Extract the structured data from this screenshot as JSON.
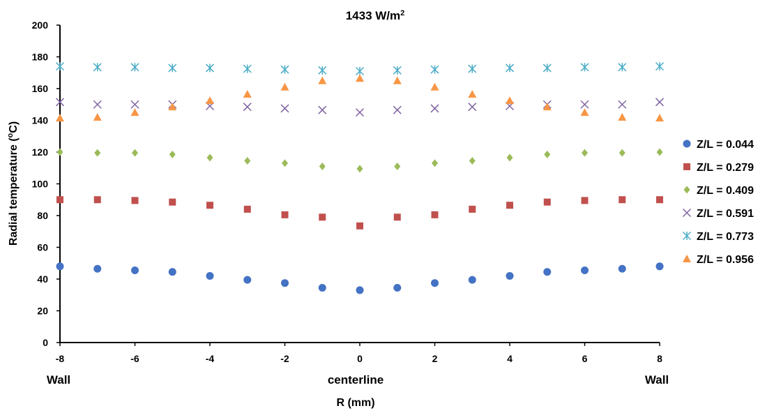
{
  "chart_data": {
    "type": "scatter",
    "title": "1433 W/m",
    "title_superscript": "2",
    "xlabel": "R (mm)",
    "ylabel": "Radial temperature (",
    "ylabel_superscript": "o",
    "ylabel_suffix": "C)",
    "xlim": [
      -8,
      8
    ],
    "ylim": [
      0,
      200
    ],
    "xticks": [
      -8,
      -6,
      -4,
      -2,
      0,
      2,
      4,
      6,
      8
    ],
    "yticks": [
      0,
      20,
      40,
      60,
      80,
      100,
      120,
      140,
      160,
      180,
      200
    ],
    "grid": false,
    "legend_position": "right",
    "below_axis_labels": {
      "left": "Wall",
      "center": "centerline",
      "right": "Wall"
    },
    "x": [
      -8,
      -7,
      -6,
      -5,
      -4,
      -3,
      -2,
      -1,
      0,
      1,
      2,
      3,
      4,
      5,
      6,
      7,
      8
    ],
    "series": [
      {
        "name": "Z/L = 0.044",
        "marker": "circle",
        "color": "#4472C4",
        "values": [
          48,
          46.5,
          45.5,
          44.5,
          42,
          39.5,
          37.5,
          34.5,
          33,
          34.5,
          37.5,
          39.5,
          42,
          44.5,
          45.5,
          46.5,
          48
        ]
      },
      {
        "name": "Z/L = 0.279",
        "marker": "square",
        "color": "#C0504D",
        "values": [
          90,
          90,
          89.5,
          88.5,
          86.5,
          84,
          80.5,
          79,
          73.5,
          79,
          80.5,
          84,
          86.5,
          88.5,
          89.5,
          90,
          90
        ]
      },
      {
        "name": "Z/L = 0.409",
        "marker": "diamond",
        "color": "#9BBB59",
        "values": [
          120,
          119.5,
          119.5,
          118.5,
          116.5,
          114.5,
          113,
          111,
          109.5,
          111,
          113,
          114.5,
          116.5,
          118.5,
          119.5,
          119.5,
          120
        ]
      },
      {
        "name": "Z/L = 0.591",
        "marker": "x",
        "color": "#8064A2",
        "values": [
          151.5,
          150,
          150,
          150,
          149,
          148.5,
          147.5,
          146.5,
          145,
          146.5,
          147.5,
          148.5,
          149,
          150,
          150,
          150,
          151.5
        ]
      },
      {
        "name": "Z/L = 0.773",
        "marker": "asterisk",
        "color": "#4BACC6",
        "values": [
          174,
          173.5,
          173.5,
          173,
          173,
          172.5,
          172,
          171.5,
          171,
          171.5,
          172,
          172.5,
          173,
          173,
          173.5,
          173.5,
          174
        ]
      },
      {
        "name": "Z/L = 0.956",
        "marker": "triangle",
        "color": "#F79646",
        "values": [
          141.5,
          142,
          145,
          148.5,
          152.5,
          156.5,
          161,
          165,
          166.5,
          165,
          161,
          156.5,
          152.5,
          148.5,
          145,
          142,
          141.5
        ]
      }
    ]
  }
}
